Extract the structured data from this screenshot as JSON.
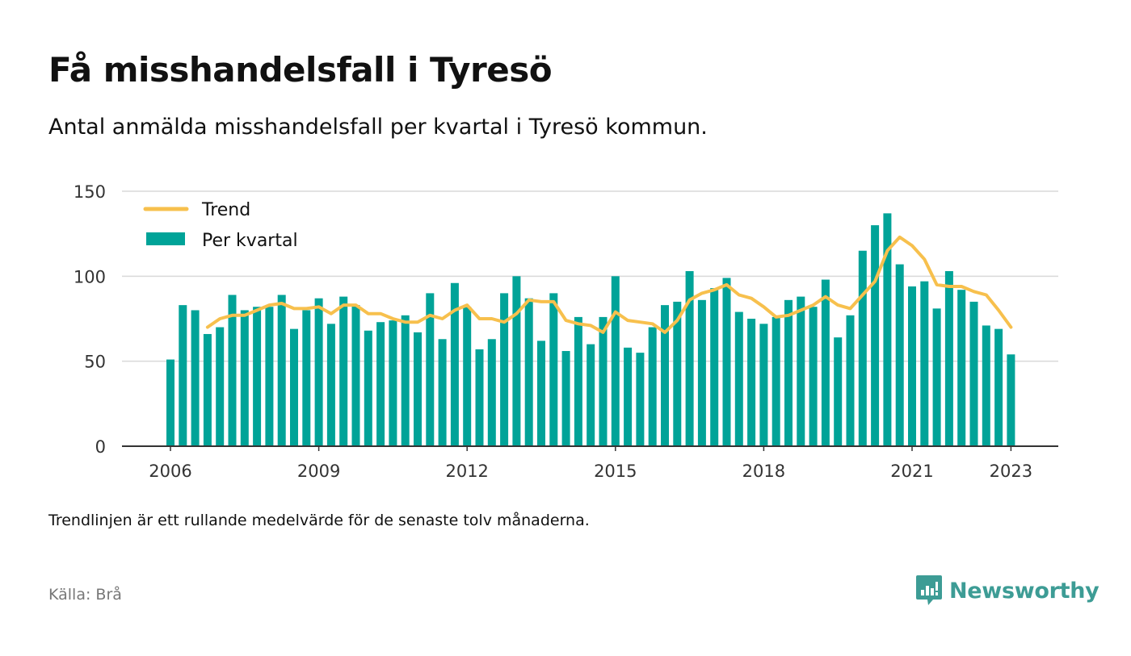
{
  "header": {
    "title": "Få misshandelsfall i Tyresö",
    "subtitle": "Antal anmälda misshandelsfall per kvartal i Tyresö kommun."
  },
  "footer": {
    "note": "Trendlinjen är ett rullande medelvärde för de senaste tolv månaderna.",
    "source": "Källa: Brå",
    "brand": "Newsworthy",
    "brand_icon": "newsworthy-logo-icon",
    "brand_color": "#3d9c95"
  },
  "chart_data": {
    "type": "bar",
    "x_start": "2006 Q1",
    "x_ticks": [
      "2006",
      "2009",
      "2012",
      "2015",
      "2018",
      "2021",
      "2023"
    ],
    "y_ticks": [
      "0",
      "50",
      "100",
      "150"
    ],
    "ylim": [
      0,
      150
    ],
    "grid": true,
    "legend_position": "top-left",
    "series": [
      {
        "name": "Per kvartal",
        "kind": "bar",
        "color": "#00a398",
        "values": [
          51,
          83,
          80,
          66,
          70,
          89,
          80,
          82,
          82,
          89,
          69,
          80,
          87,
          72,
          88,
          83,
          68,
          73,
          74,
          77,
          67,
          90,
          63,
          96,
          82,
          57,
          63,
          90,
          100,
          87,
          62,
          90,
          56,
          76,
          60,
          76,
          100,
          58,
          55,
          70,
          83,
          85,
          103,
          86,
          93,
          99,
          79,
          75,
          72,
          76,
          86,
          88,
          82,
          98,
          64,
          77,
          115,
          130,
          137,
          107,
          94,
          97,
          81,
          103,
          92,
          85,
          71,
          69,
          54
        ]
      },
      {
        "name": "Trend",
        "kind": "line",
        "color": "#f7c04d",
        "start_index": 3,
        "values": [
          70,
          75,
          77,
          77,
          80,
          83,
          84,
          81,
          81,
          82,
          78,
          83,
          83,
          78,
          78,
          75,
          73,
          73,
          77,
          75,
          80,
          83,
          75,
          75,
          73,
          78,
          86,
          85,
          85,
          74,
          72,
          71,
          67,
          79,
          74,
          73,
          72,
          67,
          74,
          86,
          90,
          92,
          95,
          89,
          87,
          82,
          76,
          77,
          80,
          83,
          88,
          83,
          81,
          89,
          97,
          115,
          123,
          118,
          110,
          95,
          94,
          94,
          91,
          89,
          80,
          70
        ]
      }
    ]
  }
}
